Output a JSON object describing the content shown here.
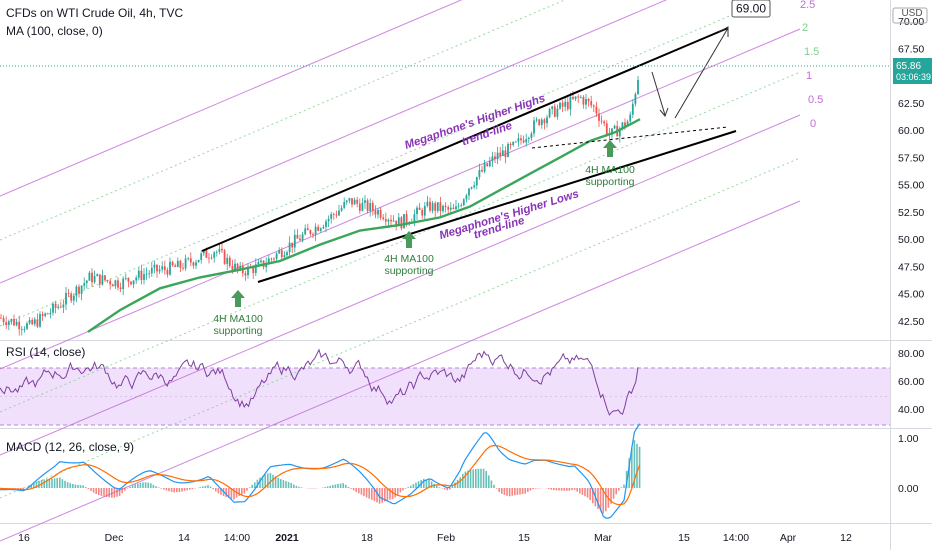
{
  "header": {
    "title": "CFDs on WTI Crude Oil, 4h, TVC",
    "indicator": "MA (100, close, 0)",
    "currency": "USD"
  },
  "price_label": {
    "value": "65.86",
    "timer": "03:06:39"
  },
  "target_label": "69.00",
  "annotations": {
    "higher_highs": [
      "Megaphone's Higher Highs",
      "trend-line"
    ],
    "higher_lows": [
      "Megaphone's Higher Lows",
      "trend-line"
    ],
    "ma_support_line1": "4H MA100",
    "ma_support_line2": "supporting"
  },
  "fib_levels": [
    "2.5",
    "2",
    "1.5",
    "1",
    "0.5",
    "0"
  ],
  "colors": {
    "up": "#26a69a",
    "down": "#ef5350",
    "ma": "#3aa659",
    "fib": "#c06bd8",
    "fib_mid": "#7fcf8f",
    "rsi_line": "#7e3f9e",
    "rsi_band": "#f0e0fb",
    "macd": "#2196f3",
    "signal": "#ff6d00",
    "text_purple": "#8a34b8",
    "arrow_green": "#4a9a5b"
  },
  "rsi": {
    "label": "RSI (14, close)",
    "ticks": [
      "80.00",
      "60.00",
      "40.00"
    ]
  },
  "macd": {
    "label": "MACD (12, 26, close, 9)",
    "ticks": [
      "1.00",
      "0.00"
    ]
  },
  "chart_data": {
    "type": "line",
    "title": "CFDs on WTI Crude Oil, 4h, TVC",
    "y_ticks": [
      "70.00",
      "67.50",
      "65.00",
      "62.50",
      "60.00",
      "57.50",
      "55.00",
      "52.50",
      "50.00",
      "47.50",
      "45.00",
      "42.50"
    ],
    "ylim": [
      41,
      71.5
    ],
    "x_ticks": [
      "16",
      "Dec",
      "14",
      "14:00",
      "2021",
      "18",
      "Feb",
      "15",
      "Mar",
      "15",
      "14:00",
      "Apr",
      "12"
    ],
    "series": [
      {
        "name": "MA (100, close, 0)",
        "x": [
          0.1,
          0.15,
          0.2,
          0.25,
          0.3,
          0.35,
          0.4,
          0.45,
          0.5,
          0.55,
          0.6,
          0.65,
          0.7
        ],
        "values": [
          41.5,
          44.5,
          46.5,
          47.5,
          48.5,
          50.5,
          51.5,
          52.5,
          55.5,
          57.5,
          59.2,
          60.0,
          61.5
        ]
      },
      {
        "name": "price",
        "x": [
          0.0,
          0.05,
          0.1,
          0.15,
          0.2,
          0.25,
          0.3,
          0.35,
          0.38,
          0.43,
          0.48,
          0.52,
          0.55,
          0.58,
          0.6,
          0.62,
          0.65,
          0.67,
          0.69,
          0.7
        ],
        "values": [
          41.5,
          43.0,
          45.5,
          46.5,
          47.5,
          47.0,
          49.5,
          52.5,
          54.0,
          52.0,
          53.0,
          56.5,
          58.5,
          61.5,
          60.0,
          62.5,
          61.5,
          58.5,
          60.5,
          65.86
        ]
      }
    ]
  }
}
